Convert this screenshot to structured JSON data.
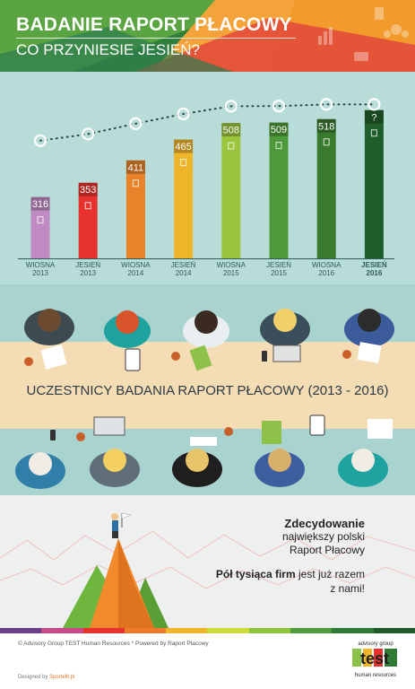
{
  "header": {
    "title": "BADANIE RAPORT PŁACOWY",
    "subtitle": "CO PRZYNIESIE JESIEŃ?"
  },
  "chart_data": {
    "type": "bar",
    "categories": [
      [
        "WIOSNA",
        "2013"
      ],
      [
        "JESIEŃ",
        "2013"
      ],
      [
        "WIOSNA",
        "2014"
      ],
      [
        "JESIEŃ",
        "2014"
      ],
      [
        "WIOSNA",
        "2015"
      ],
      [
        "JESIEŃ",
        "2015"
      ],
      [
        "WIOSNA",
        "2016"
      ],
      [
        "JESIEŃ",
        "2016"
      ]
    ],
    "values": [
      316,
      353,
      411,
      465,
      508,
      509,
      518,
      null
    ],
    "labels": [
      "316",
      "353",
      "411",
      "465",
      "508",
      "509",
      "518",
      "?"
    ],
    "colors": [
      "#c08ac2",
      "#e8322e",
      "#e8832a",
      "#efb52a",
      "#9bc53c",
      "#4e9a3a",
      "#3a7a2e",
      "#1f5e2a"
    ],
    "background": "#b8dcd8"
  },
  "meeting": {
    "title": "UCZESTNICY BADANIA RAPORT PŁACOWY (2013 - 2016)"
  },
  "bottom": {
    "line1": "Zdecydowanie",
    "line2": "największy polski",
    "line3": "Raport Płacowy",
    "line4_bold": "Pół tysiąca firm",
    "line4_rest": " jest już razem",
    "line5": "z nami!"
  },
  "colorbar": [
    "#6f3e8a",
    "#c84a8b",
    "#e8322e",
    "#ee7b29",
    "#f0b62b",
    "#cadb3a",
    "#8fc43d",
    "#4f9d3a",
    "#2f7a34",
    "#1e5a2a"
  ],
  "footer": {
    "copyright": "© Advisory Group TEST Human Resources      * Powered by Raport Płacowy",
    "designed_prefix": "Designed by ",
    "designed_by": "Sportellt.pl",
    "logo_top": "advisory group",
    "logo_word": "test",
    "logo_bottom": "human resources"
  }
}
